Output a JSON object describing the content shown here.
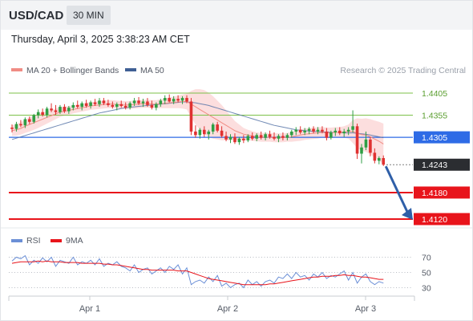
{
  "header": {
    "symbol": "USD/CAD",
    "timeframe": "30 MIN"
  },
  "datetime": "Thursday, April 3, 2025 3:38:23 AM CET",
  "legend": {
    "ma20_bb": "MA 20 + Bollinger Bands",
    "ma50": "MA 50",
    "source": "Research © 2025 Trading Central"
  },
  "colors": {
    "up": "#2f9e44",
    "down": "#e03131",
    "ma20": "#f08c84",
    "ma50": "#5876a8",
    "bb_fill": "#fbd3d3",
    "blue_level": "#2e6be6",
    "red_level": "#e8141b",
    "green_level": "#7cc04a",
    "arrow": "#2f5fa8",
    "rsi": "#6b8fd6",
    "rsi_ma": "#e8141b"
  },
  "chart_data": [
    {
      "type": "candlestick",
      "x_ticks": [
        "Apr 1",
        "Apr 2",
        "Apr 3"
      ],
      "ylim": [
        1.41,
        1.4425
      ],
      "candles": [
        [
          1.4327,
          1.4334,
          1.4316,
          1.4324
        ],
        [
          1.4324,
          1.434,
          1.4318,
          1.4335
        ],
        [
          1.4335,
          1.4344,
          1.4328,
          1.4332
        ],
        [
          1.4332,
          1.435,
          1.4326,
          1.4346
        ],
        [
          1.4346,
          1.4352,
          1.4335,
          1.434
        ],
        [
          1.434,
          1.4358,
          1.4336,
          1.4355
        ],
        [
          1.4355,
          1.4368,
          1.4348,
          1.4362
        ],
        [
          1.4362,
          1.437,
          1.4352,
          1.4356
        ],
        [
          1.4356,
          1.4374,
          1.435,
          1.437
        ],
        [
          1.437,
          1.4382,
          1.4362,
          1.4366
        ],
        [
          1.4366,
          1.4378,
          1.4356,
          1.4362
        ],
        [
          1.4362,
          1.4378,
          1.4358,
          1.4374
        ],
        [
          1.4374,
          1.438,
          1.436,
          1.4364
        ],
        [
          1.4364,
          1.4376,
          1.4358,
          1.4372
        ],
        [
          1.4372,
          1.4384,
          1.4366,
          1.4378
        ],
        [
          1.4378,
          1.4388,
          1.437,
          1.4374
        ],
        [
          1.4374,
          1.4386,
          1.4366,
          1.4382
        ],
        [
          1.4382,
          1.439,
          1.4372,
          1.4376
        ],
        [
          1.4376,
          1.4388,
          1.437,
          1.4384
        ],
        [
          1.4384,
          1.4392,
          1.4376,
          1.438
        ],
        [
          1.438,
          1.4394,
          1.4374,
          1.4388
        ],
        [
          1.4388,
          1.4394,
          1.4378,
          1.4382
        ],
        [
          1.4382,
          1.439,
          1.4374,
          1.4378
        ],
        [
          1.4378,
          1.4386,
          1.437,
          1.4374
        ],
        [
          1.4374,
          1.4384,
          1.4366,
          1.438
        ],
        [
          1.438,
          1.4388,
          1.4372,
          1.4376
        ],
        [
          1.4376,
          1.4384,
          1.4368,
          1.4372
        ],
        [
          1.4372,
          1.4386,
          1.4368,
          1.4382
        ],
        [
          1.4382,
          1.4394,
          1.4376,
          1.4388
        ],
        [
          1.4388,
          1.4396,
          1.4378,
          1.4382
        ],
        [
          1.4382,
          1.4392,
          1.4374,
          1.4386
        ],
        [
          1.4386,
          1.4394,
          1.4374,
          1.4378
        ],
        [
          1.4378,
          1.4388,
          1.4368,
          1.4372
        ],
        [
          1.4372,
          1.4384,
          1.4366,
          1.438
        ],
        [
          1.438,
          1.4392,
          1.4374,
          1.4388
        ],
        [
          1.4388,
          1.44,
          1.438,
          1.4394
        ],
        [
          1.4394,
          1.4402,
          1.4384,
          1.4386
        ],
        [
          1.4386,
          1.4398,
          1.438,
          1.4392
        ],
        [
          1.4392,
          1.44,
          1.4384,
          1.4388
        ],
        [
          1.4388,
          1.4398,
          1.438,
          1.4394
        ],
        [
          1.4394,
          1.44,
          1.4382,
          1.4386
        ],
        [
          1.4386,
          1.4394,
          1.431,
          1.4318
        ],
        [
          1.4318,
          1.4332,
          1.4304,
          1.431
        ],
        [
          1.431,
          1.4326,
          1.4302,
          1.4322
        ],
        [
          1.4322,
          1.433,
          1.4306,
          1.4312
        ],
        [
          1.4312,
          1.4322,
          1.43,
          1.4318
        ],
        [
          1.4318,
          1.4338,
          1.4312,
          1.4334
        ],
        [
          1.4334,
          1.434,
          1.4316,
          1.432
        ],
        [
          1.432,
          1.433,
          1.4304,
          1.4308
        ],
        [
          1.4308,
          1.4318,
          1.4296,
          1.43
        ],
        [
          1.43,
          1.4312,
          1.4292,
          1.4306
        ],
        [
          1.4306,
          1.4314,
          1.429,
          1.4294
        ],
        [
          1.4294,
          1.4306,
          1.4288,
          1.4302
        ],
        [
          1.4302,
          1.431,
          1.4292,
          1.4298
        ],
        [
          1.4298,
          1.4312,
          1.4294,
          1.4308
        ],
        [
          1.4308,
          1.4316,
          1.4298,
          1.4302
        ],
        [
          1.4302,
          1.4314,
          1.4296,
          1.431
        ],
        [
          1.431,
          1.4318,
          1.43,
          1.4304
        ],
        [
          1.4304,
          1.4316,
          1.4298,
          1.4312
        ],
        [
          1.4312,
          1.432,
          1.4302,
          1.4306
        ],
        [
          1.4306,
          1.4316,
          1.4298,
          1.4302
        ],
        [
          1.4302,
          1.4312,
          1.4294,
          1.4308
        ],
        [
          1.4308,
          1.4316,
          1.4298,
          1.4304
        ],
        [
          1.4304,
          1.4314,
          1.4298,
          1.431
        ],
        [
          1.431,
          1.4322,
          1.4304,
          1.4318
        ],
        [
          1.4318,
          1.4328,
          1.431,
          1.4322
        ],
        [
          1.4322,
          1.433,
          1.4312,
          1.4316
        ],
        [
          1.4316,
          1.4326,
          1.431,
          1.432
        ],
        [
          1.432,
          1.4328,
          1.4312,
          1.4324
        ],
        [
          1.4324,
          1.433,
          1.4314,
          1.4318
        ],
        [
          1.4318,
          1.4328,
          1.4312,
          1.4322
        ],
        [
          1.4322,
          1.433,
          1.4314,
          1.4318
        ],
        [
          1.4318,
          1.4326,
          1.4298,
          1.4304
        ],
        [
          1.4304,
          1.432,
          1.43,
          1.4316
        ],
        [
          1.4316,
          1.4326,
          1.4308,
          1.432
        ],
        [
          1.432,
          1.4328,
          1.431,
          1.4314
        ],
        [
          1.4314,
          1.4324,
          1.4306,
          1.4318
        ],
        [
          1.4318,
          1.4328,
          1.431,
          1.4322
        ],
        [
          1.4322,
          1.4366,
          1.4316,
          1.433
        ],
        [
          1.433,
          1.4336,
          1.4256,
          1.4268
        ],
        [
          1.4268,
          1.429,
          1.4246,
          1.4282
        ],
        [
          1.4282,
          1.4318,
          1.4276,
          1.43
        ],
        [
          1.43,
          1.4306,
          1.4262,
          1.427
        ],
        [
          1.427,
          1.428,
          1.4246,
          1.4252
        ],
        [
          1.4252,
          1.4262,
          1.4244,
          1.4258
        ],
        [
          1.4258,
          1.4264,
          1.424,
          1.4243
        ]
      ],
      "ma20": [
        1.432,
        1.4322,
        1.4325,
        1.433,
        1.4334,
        1.4338,
        1.4342,
        1.4346,
        1.435,
        1.4354,
        1.4358,
        1.4362,
        1.4364,
        1.4366,
        1.4368,
        1.437,
        1.4372,
        1.4374,
        1.4376,
        1.4377,
        1.4378,
        1.4379,
        1.438,
        1.438,
        1.4379,
        1.4378,
        1.4378,
        1.4378,
        1.4379,
        1.438,
        1.4381,
        1.4381,
        1.438,
        1.438,
        1.4381,
        1.4382,
        1.4383,
        1.4384,
        1.4385,
        1.4386,
        1.4386,
        1.438,
        1.4374,
        1.4368,
        1.4362,
        1.4356,
        1.435,
        1.4344,
        1.4338,
        1.4332,
        1.4326,
        1.432,
        1.4316,
        1.4312,
        1.431,
        1.4308,
        1.4306,
        1.4305,
        1.4305,
        1.4305,
        1.4304,
        1.4304,
        1.4304,
        1.4305,
        1.4306,
        1.4308,
        1.431,
        1.4312,
        1.4313,
        1.4314,
        1.4315,
        1.4316,
        1.4315,
        1.4315,
        1.4316,
        1.4316,
        1.4317,
        1.4318,
        1.4318,
        1.4314,
        1.4311,
        1.431,
        1.4306,
        1.4301,
        1.4296,
        1.429
      ],
      "ma50": [
        1.43,
        1.4303,
        1.4306,
        1.4309,
        1.4312,
        1.4315,
        1.4318,
        1.4321,
        1.4324,
        1.4327,
        1.433,
        1.4333,
        1.4336,
        1.4339,
        1.4342,
        1.4345,
        1.4348,
        1.4351,
        1.4354,
        1.4357,
        1.436,
        1.4362,
        1.4364,
        1.4366,
        1.4368,
        1.437,
        1.4372,
        1.4373,
        1.4374,
        1.4375,
        1.4376,
        1.4377,
        1.4378,
        1.4379,
        1.438,
        1.4381,
        1.4382,
        1.4383,
        1.4384,
        1.4385,
        1.4385,
        1.4384,
        1.4383,
        1.4381,
        1.4379,
        1.4377,
        1.4374,
        1.4371,
        1.4368,
        1.4365,
        1.4362,
        1.4359,
        1.4356,
        1.4353,
        1.435,
        1.4347,
        1.4344,
        1.4341,
        1.4338,
        1.4335,
        1.4332,
        1.433,
        1.4328,
        1.4326,
        1.4324,
        1.4322,
        1.4321,
        1.432,
        1.4319,
        1.4318,
        1.4318,
        1.4317,
        1.4317,
        1.4316,
        1.4316,
        1.4316,
        1.4315,
        1.4315,
        1.4315,
        1.4314,
        1.4313,
        1.4312,
        1.431,
        1.4308,
        1.4306,
        1.4304
      ],
      "bb_width": [
        0.0012,
        0.0013,
        0.0014,
        0.0015,
        0.0016,
        0.0016,
        0.0016,
        0.0015,
        0.0014,
        0.0013,
        0.0012,
        0.0011,
        0.001,
        0.001,
        0.0009,
        0.0009,
        0.0009,
        0.0009,
        0.0009,
        0.0009,
        0.0009,
        0.0009,
        0.0009,
        0.0009,
        0.0009,
        0.0009,
        0.0009,
        0.0009,
        0.0009,
        0.0009,
        0.0009,
        0.0009,
        0.0009,
        0.0009,
        0.001,
        0.0011,
        0.0012,
        0.0013,
        0.0014,
        0.0016,
        0.0018,
        0.003,
        0.004,
        0.0046,
        0.005,
        0.005,
        0.0048,
        0.0044,
        0.004,
        0.0034,
        0.0028,
        0.0022,
        0.0018,
        0.0014,
        0.0012,
        0.0011,
        0.001,
        0.001,
        0.001,
        0.001,
        0.001,
        0.001,
        0.001,
        0.001,
        0.0011,
        0.0012,
        0.0013,
        0.0013,
        0.0013,
        0.0013,
        0.0013,
        0.0012,
        0.0012,
        0.0012,
        0.0012,
        0.0012,
        0.0013,
        0.0016,
        0.0026,
        0.0034,
        0.0036,
        0.0038,
        0.004,
        0.0042,
        0.0044,
        0.0046
      ],
      "levels": [
        {
          "value": 1.4405,
          "label": "1.4405",
          "kind": "resistance"
        },
        {
          "value": 1.4355,
          "label": "1.4355",
          "kind": "resistance"
        },
        {
          "value": 1.4305,
          "label": "1.4305",
          "kind": "pivot"
        },
        {
          "value": 1.4243,
          "label": "1.4243",
          "kind": "last"
        },
        {
          "value": 1.418,
          "label": "1.4180",
          "kind": "target"
        },
        {
          "value": 1.412,
          "label": "1.4120",
          "kind": "target"
        }
      ],
      "arrow": {
        "from_price": 1.4243,
        "to_price": 1.412
      }
    },
    {
      "type": "line",
      "legend": [
        "RSI",
        "9MA"
      ],
      "y_ticks": [
        70,
        50,
        30
      ],
      "ylim": [
        20,
        80
      ],
      "rsi": [
        65,
        70,
        68,
        72,
        60,
        66,
        62,
        69,
        64,
        70,
        58,
        66,
        64,
        62,
        70,
        60,
        64,
        62,
        66,
        60,
        68,
        58,
        62,
        60,
        64,
        58,
        56,
        52,
        60,
        50,
        54,
        56,
        48,
        52,
        56,
        50,
        58,
        54,
        60,
        48,
        56,
        34,
        38,
        40,
        36,
        44,
        38,
        46,
        32,
        36,
        30,
        34,
        36,
        30,
        40,
        34,
        38,
        32,
        38,
        40,
        36,
        44,
        42,
        48,
        42,
        50,
        44,
        46,
        40,
        48,
        44,
        50,
        42,
        46,
        44,
        48,
        52,
        40,
        50,
        36,
        44,
        48,
        38,
        34,
        38,
        36
      ],
      "rsi_ma": [
        62,
        63,
        64,
        64,
        64,
        64,
        65,
        64,
        65,
        64,
        64,
        64,
        63,
        63,
        63,
        63,
        62,
        62,
        62,
        62,
        62,
        61,
        61,
        60,
        60,
        59,
        58,
        57,
        56,
        55,
        54,
        54,
        53,
        53,
        53,
        53,
        53,
        53,
        52,
        52,
        52,
        50,
        48,
        46,
        44,
        42,
        41,
        40,
        39,
        38,
        37,
        36,
        35,
        34,
        34,
        34,
        34,
        34,
        34,
        35,
        35,
        36,
        37,
        38,
        39,
        40,
        41,
        42,
        43,
        44,
        44,
        45,
        45,
        45,
        46,
        46,
        47,
        46,
        46,
        45,
        44,
        44,
        43,
        42,
        41,
        41
      ]
    }
  ]
}
